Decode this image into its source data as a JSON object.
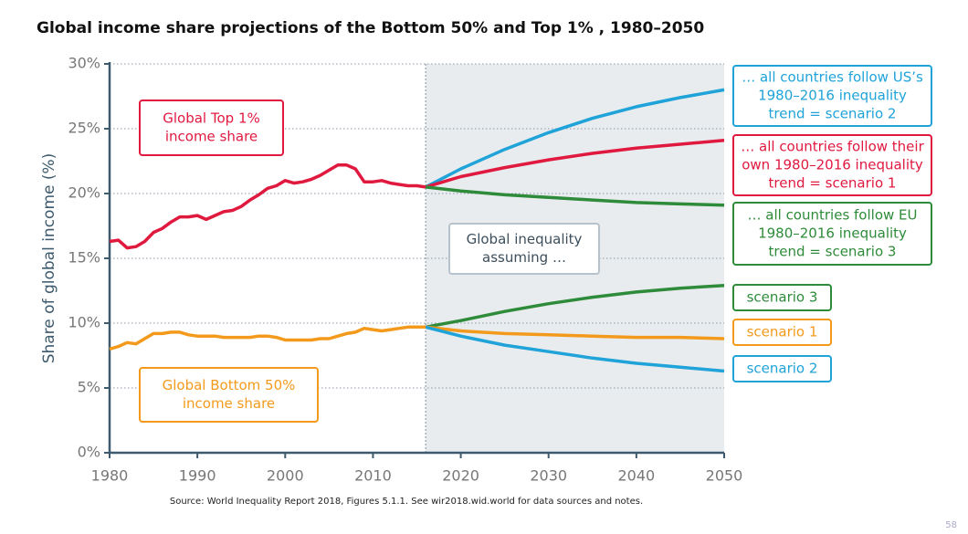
{
  "chart_data": {
    "type": "line",
    "title": "Global income share projections of the Bottom 50% and Top 1% , 1980–2050",
    "ylabel": "Share of global income (%)",
    "source": "Source:  World Inequality Report 2018, Figures 5.1.1.  See wir2018.wid.world  for data sources  and notes.",
    "page_number": "58",
    "annotation": [
      "Global inequality",
      "assuming …"
    ],
    "xlim": [
      1980,
      2050
    ],
    "xticks": [
      1980,
      1990,
      2000,
      2010,
      2020,
      2030,
      2040,
      2050
    ],
    "ylim": [
      0,
      30
    ],
    "yticks": [
      {
        "value": 0,
        "label": "0%"
      },
      {
        "value": 5,
        "label": "5%"
      },
      {
        "value": 10,
        "label": "10%"
      },
      {
        "value": 15,
        "label": "15%"
      },
      {
        "value": 20,
        "label": "20%"
      },
      {
        "value": 25,
        "label": "25%"
      },
      {
        "value": 30,
        "label": "30%"
      }
    ],
    "grid": true,
    "series": [
      {
        "label": [
          "Global Top 1%",
          "income share"
        ],
        "color": "#e0193f",
        "x": [
          1980,
          1981,
          1982,
          1983,
          1984,
          1985,
          1986,
          1987,
          1988,
          1989,
          1990,
          1991,
          1992,
          1993,
          1994,
          1995,
          1996,
          1997,
          1998,
          1999,
          2000,
          2001,
          2002,
          2003,
          2004,
          2005,
          2006,
          2007,
          2008,
          2009,
          2010,
          2011,
          2012,
          2013,
          2014,
          2015,
          2016
        ],
        "values": [
          16.3,
          16.4,
          15.8,
          15.9,
          16.3,
          17.0,
          17.3,
          17.8,
          18.2,
          18.2,
          18.3,
          18.0,
          18.3,
          18.6,
          18.7,
          19.0,
          19.5,
          19.9,
          20.4,
          20.6,
          21.0,
          20.8,
          20.9,
          21.1,
          21.4,
          21.8,
          22.2,
          22.2,
          21.9,
          20.9,
          20.9,
          21.0,
          20.8,
          20.7,
          20.6,
          20.6,
          20.5
        ]
      },
      {
        "label": [
          "Global Bottom 50%",
          "income share"
        ],
        "color": "#f39a1c",
        "x": [
          1980,
          1981,
          1982,
          1983,
          1984,
          1985,
          1986,
          1987,
          1988,
          1989,
          1990,
          1991,
          1992,
          1993,
          1994,
          1995,
          1996,
          1997,
          1998,
          1999,
          2000,
          2001,
          2002,
          2003,
          2004,
          2005,
          2006,
          2007,
          2008,
          2009,
          2010,
          2011,
          2012,
          2013,
          2014,
          2015,
          2016
        ],
        "values": [
          8.0,
          8.2,
          8.5,
          8.4,
          8.8,
          9.2,
          9.2,
          9.3,
          9.3,
          9.1,
          9.0,
          9.0,
          9.0,
          8.9,
          8.9,
          8.9,
          8.9,
          9.0,
          9.0,
          8.9,
          8.7,
          8.7,
          8.7,
          8.7,
          8.8,
          8.8,
          9.0,
          9.2,
          9.3,
          9.6,
          9.5,
          9.4,
          9.5,
          9.6,
          9.7,
          9.7,
          9.7
        ]
      },
      {
        "label": [
          "… all countries follow US’s",
          "1980–2016 inequality",
          "trend = scenario 2"
        ],
        "color": "#1fa3d8",
        "x": [
          2016,
          2020,
          2025,
          2030,
          2035,
          2040,
          2045,
          2050
        ],
        "values": [
          20.5,
          21.9,
          23.4,
          24.7,
          25.8,
          26.7,
          27.4,
          28.0
        ]
      },
      {
        "label": [
          "… all countries follow their",
          "own 1980–2016 inequality",
          "trend = scenario 1"
        ],
        "color": "#e0193f",
        "x": [
          2016,
          2020,
          2025,
          2030,
          2035,
          2040,
          2045,
          2050
        ],
        "values": [
          20.5,
          21.3,
          22.0,
          22.6,
          23.1,
          23.5,
          23.8,
          24.1
        ]
      },
      {
        "label": [
          "… all countries follow EU",
          "1980–2016 inequality",
          "trend = scenario 3"
        ],
        "color": "#2e8b3a",
        "x": [
          2016,
          2020,
          2025,
          2030,
          2035,
          2040,
          2045,
          2050
        ],
        "values": [
          20.5,
          20.2,
          19.9,
          19.7,
          19.5,
          19.3,
          19.2,
          19.1
        ]
      },
      {
        "label": [
          "scenario 3"
        ],
        "color": "#2e8b3a",
        "x": [
          2016,
          2020,
          2025,
          2030,
          2035,
          2040,
          2045,
          2050
        ],
        "values": [
          9.7,
          10.2,
          10.9,
          11.5,
          12.0,
          12.4,
          12.7,
          12.9
        ]
      },
      {
        "label": [
          "scenario 1"
        ],
        "color": "#f39a1c",
        "x": [
          2016,
          2020,
          2025,
          2030,
          2035,
          2040,
          2045,
          2050
        ],
        "values": [
          9.7,
          9.4,
          9.2,
          9.1,
          9.0,
          8.9,
          8.9,
          8.8
        ]
      },
      {
        "label": [
          "scenario 2"
        ],
        "color": "#1fa3d8",
        "x": [
          2016,
          2020,
          2025,
          2030,
          2035,
          2040,
          2045,
          2050
        ],
        "values": [
          9.7,
          9.0,
          8.3,
          7.8,
          7.3,
          6.9,
          6.6,
          6.3
        ]
      }
    ]
  }
}
